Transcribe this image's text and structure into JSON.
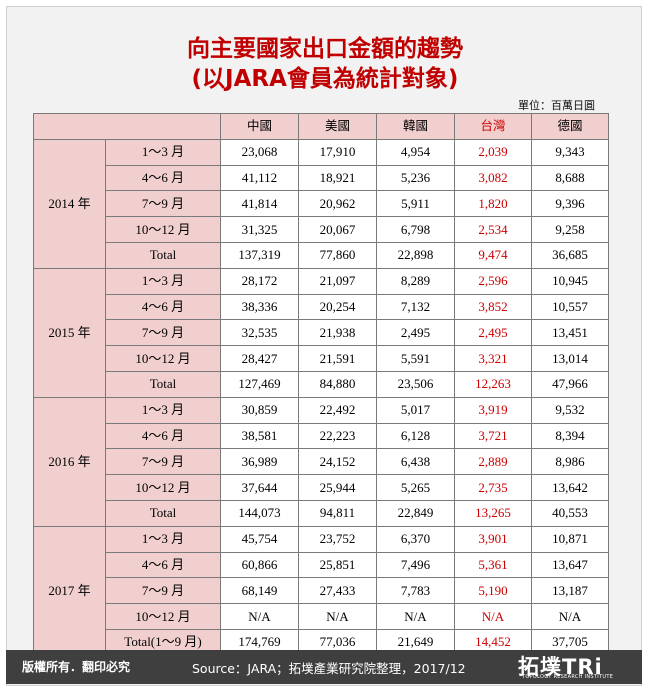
{
  "title_line1": "向主要國家出口金額的趨勢",
  "title_line2": "(以JARA會員為統計對象)",
  "unit": "單位：百萬日圓",
  "columns": [
    "中國",
    "美國",
    "韓國",
    "台灣",
    "德國"
  ],
  "years": [
    {
      "label": "2014 年",
      "rows": [
        {
          "period": "1～3 月",
          "values": [
            "23,068",
            "17,910",
            "4,954",
            "2,039",
            "9,343"
          ]
        },
        {
          "period": "4～6 月",
          "values": [
            "41,112",
            "18,921",
            "5,236",
            "3,082",
            "8,688"
          ]
        },
        {
          "period": "7～9 月",
          "values": [
            "41,814",
            "20,962",
            "5,911",
            "1,820",
            "9,396"
          ]
        },
        {
          "period": "10～12 月",
          "values": [
            "31,325",
            "20,067",
            "6,798",
            "2,534",
            "9,258"
          ]
        },
        {
          "period": "Total",
          "values": [
            "137,319",
            "77,860",
            "22,898",
            "9,474",
            "36,685"
          ]
        }
      ]
    },
    {
      "label": "2015 年",
      "rows": [
        {
          "period": "1～3 月",
          "values": [
            "28,172",
            "21,097",
            "8,289",
            "2,596",
            "10,945"
          ]
        },
        {
          "period": "4～6 月",
          "values": [
            "38,336",
            "20,254",
            "7,132",
            "3,852",
            "10,557"
          ]
        },
        {
          "period": "7～9 月",
          "values": [
            "32,535",
            "21,938",
            "2,495",
            "2,495",
            "13,451"
          ]
        },
        {
          "period": "10～12 月",
          "values": [
            "28,427",
            "21,591",
            "5,591",
            "3,321",
            "13,014"
          ]
        },
        {
          "period": "Total",
          "values": [
            "127,469",
            "84,880",
            "23,506",
            "12,263",
            "47,966"
          ]
        }
      ]
    },
    {
      "label": "2016 年",
      "rows": [
        {
          "period": "1～3 月",
          "values": [
            "30,859",
            "22,492",
            "5,017",
            "3,919",
            "9,532"
          ]
        },
        {
          "period": "4～6 月",
          "values": [
            "38,581",
            "22,223",
            "6,128",
            "3,721",
            "8,394"
          ]
        },
        {
          "period": "7～9 月",
          "values": [
            "36,989",
            "24,152",
            "6,438",
            "2,889",
            "8,986"
          ]
        },
        {
          "period": "10～12 月",
          "values": [
            "37,644",
            "25,944",
            "5,265",
            "2,735",
            "13,642"
          ]
        },
        {
          "period": "Total",
          "values": [
            "144,073",
            "94,811",
            "22,849",
            "13,265",
            "40,553"
          ]
        }
      ]
    },
    {
      "label": "2017 年",
      "rows": [
        {
          "period": "1～3 月",
          "values": [
            "45,754",
            "23,752",
            "6,370",
            "3,901",
            "10,871"
          ]
        },
        {
          "period": "4～6 月",
          "values": [
            "60,866",
            "25,851",
            "7,496",
            "5,361",
            "13,647"
          ]
        },
        {
          "period": "7～9 月",
          "values": [
            "68,149",
            "27,433",
            "7,783",
            "5,190",
            "13,187"
          ]
        },
        {
          "period": "10～12 月",
          "values": [
            "N/A",
            "N/A",
            "N/A",
            "N/A",
            "N/A"
          ]
        },
        {
          "period": "Total(1～9 月)",
          "values": [
            "174,769",
            "77,036",
            "21,649",
            "14,452",
            "37,705"
          ]
        }
      ]
    }
  ],
  "footer": {
    "rights": "版權所有．翻印必究",
    "source": "Source：JARA；拓墣產業研究院整理，2017/12"
  },
  "logo": {
    "main": "拓墣TRi",
    "sub": "TOPOLOGY RESEARCH INSTITUTE"
  },
  "colors": {
    "title": "#c00000",
    "header_bg": "#f2cfcf",
    "taiwan": "#cc0000",
    "footer_bg": "#3f3f3f"
  }
}
